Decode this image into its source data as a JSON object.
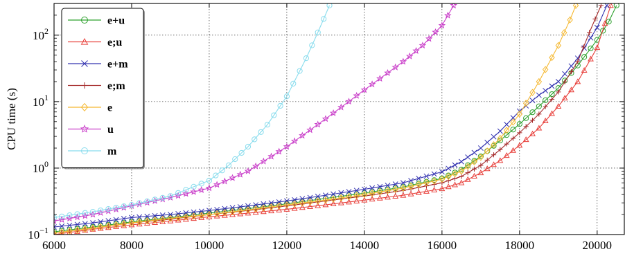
{
  "chart_data": {
    "type": "line",
    "ylabel": "CPU time (s)",
    "xlabel": "",
    "xlim": [
      6000,
      20700
    ],
    "ylim": [
      0.1,
      300
    ],
    "y_scale": "log",
    "grid": true,
    "legend_position": "top-left",
    "x_ticks": [
      "6000",
      "8000",
      "10000",
      "12000",
      "14000",
      "16000",
      "18000",
      "20000"
    ],
    "y_ticks": [
      {
        "base": "10",
        "exp": "−1",
        "value": 0.1
      },
      {
        "base": "10",
        "exp": "0",
        "value": 1
      },
      {
        "base": "10",
        "exp": "1",
        "value": 10
      },
      {
        "base": "10",
        "exp": "2",
        "value": 100
      }
    ],
    "series": [
      {
        "name": "e+u",
        "color": "#2ca02c",
        "marker": "circle",
        "points": [
          [
            6000,
            0.11
          ],
          [
            7000,
            0.13
          ],
          [
            8000,
            0.155
          ],
          [
            9000,
            0.18
          ],
          [
            10000,
            0.21
          ],
          [
            11000,
            0.245
          ],
          [
            12000,
            0.29
          ],
          [
            13000,
            0.35
          ],
          [
            14000,
            0.42
          ],
          [
            15000,
            0.52
          ],
          [
            16000,
            0.7
          ],
          [
            16500,
            0.95
          ],
          [
            17000,
            1.5
          ],
          [
            17500,
            2.6
          ],
          [
            18000,
            4.6
          ],
          [
            18500,
            8.5
          ],
          [
            19000,
            16
          ],
          [
            19500,
            35
          ],
          [
            20000,
            85
          ],
          [
            20300,
            160
          ],
          [
            20500,
            280
          ]
        ]
      },
      {
        "name": "e;u",
        "color": "#e8413c",
        "marker": "triangle",
        "points": [
          [
            6000,
            0.1
          ],
          [
            7000,
            0.12
          ],
          [
            8000,
            0.14
          ],
          [
            9000,
            0.16
          ],
          [
            10000,
            0.185
          ],
          [
            11000,
            0.21
          ],
          [
            12000,
            0.24
          ],
          [
            13000,
            0.28
          ],
          [
            14000,
            0.33
          ],
          [
            15000,
            0.39
          ],
          [
            16000,
            0.49
          ],
          [
            16500,
            0.6
          ],
          [
            17000,
            0.85
          ],
          [
            17500,
            1.3
          ],
          [
            18000,
            2.2
          ],
          [
            18500,
            4
          ],
          [
            19000,
            8.5
          ],
          [
            19500,
            20
          ],
          [
            20000,
            65
          ],
          [
            20200,
            150
          ],
          [
            20350,
            280
          ]
        ]
      },
      {
        "name": "e+m",
        "color": "#3434b0",
        "marker": "x",
        "points": [
          [
            6000,
            0.13
          ],
          [
            7000,
            0.15
          ],
          [
            8000,
            0.18
          ],
          [
            9000,
            0.2
          ],
          [
            10000,
            0.23
          ],
          [
            11000,
            0.27
          ],
          [
            12000,
            0.32
          ],
          [
            13000,
            0.39
          ],
          [
            14000,
            0.48
          ],
          [
            15000,
            0.6
          ],
          [
            16000,
            0.88
          ],
          [
            16500,
            1.25
          ],
          [
            17000,
            2
          ],
          [
            17500,
            3.6
          ],
          [
            18000,
            7.2
          ],
          [
            18500,
            12.5
          ],
          [
            19000,
            20
          ],
          [
            19500,
            45
          ],
          [
            20000,
            130
          ],
          [
            20250,
            280
          ]
        ]
      },
      {
        "name": "e;m",
        "color": "#a52a2a",
        "marker": "plus",
        "points": [
          [
            6000,
            0.105
          ],
          [
            7000,
            0.125
          ],
          [
            8000,
            0.15
          ],
          [
            9000,
            0.17
          ],
          [
            10000,
            0.2
          ],
          [
            11000,
            0.23
          ],
          [
            12000,
            0.27
          ],
          [
            13000,
            0.32
          ],
          [
            14000,
            0.38
          ],
          [
            15000,
            0.46
          ],
          [
            16000,
            0.6
          ],
          [
            16500,
            0.75
          ],
          [
            17000,
            1.1
          ],
          [
            17500,
            1.9
          ],
          [
            18000,
            3.4
          ],
          [
            18500,
            6.5
          ],
          [
            19000,
            14
          ],
          [
            19500,
            40
          ],
          [
            19800,
            110
          ],
          [
            20100,
            280
          ]
        ]
      },
      {
        "name": "e",
        "color": "#f5b830",
        "marker": "diamond",
        "points": [
          [
            6000,
            0.105
          ],
          [
            7000,
            0.125
          ],
          [
            8000,
            0.15
          ],
          [
            9000,
            0.175
          ],
          [
            10000,
            0.2
          ],
          [
            11000,
            0.235
          ],
          [
            12000,
            0.28
          ],
          [
            13000,
            0.33
          ],
          [
            14000,
            0.4
          ],
          [
            15000,
            0.5
          ],
          [
            16000,
            0.68
          ],
          [
            16500,
            0.9
          ],
          [
            17000,
            1.45
          ],
          [
            17500,
            2.8
          ],
          [
            18000,
            6.5
          ],
          [
            18500,
            20
          ],
          [
            19000,
            70
          ],
          [
            19300,
            170
          ],
          [
            19450,
            280
          ]
        ]
      },
      {
        "name": "u",
        "color": "#c93ec9",
        "marker": "star",
        "points": [
          [
            6000,
            0.16
          ],
          [
            7000,
            0.2
          ],
          [
            8000,
            0.27
          ],
          [
            9000,
            0.36
          ],
          [
            10000,
            0.5
          ],
          [
            11000,
            0.9
          ],
          [
            12000,
            2.1
          ],
          [
            13000,
            5.5
          ],
          [
            14000,
            15
          ],
          [
            15000,
            40
          ],
          [
            15500,
            70
          ],
          [
            16000,
            140
          ],
          [
            16300,
            280
          ]
        ]
      },
      {
        "name": "m",
        "color": "#88dced",
        "marker": "circle",
        "points": [
          [
            6000,
            0.18
          ],
          [
            7000,
            0.22
          ],
          [
            8000,
            0.28
          ],
          [
            9000,
            0.38
          ],
          [
            10000,
            0.65
          ],
          [
            10500,
            1.1
          ],
          [
            11000,
            2.1
          ],
          [
            11500,
            4.5
          ],
          [
            12000,
            12
          ],
          [
            12500,
            45
          ],
          [
            12800,
            110
          ],
          [
            13100,
            280
          ]
        ]
      }
    ]
  }
}
